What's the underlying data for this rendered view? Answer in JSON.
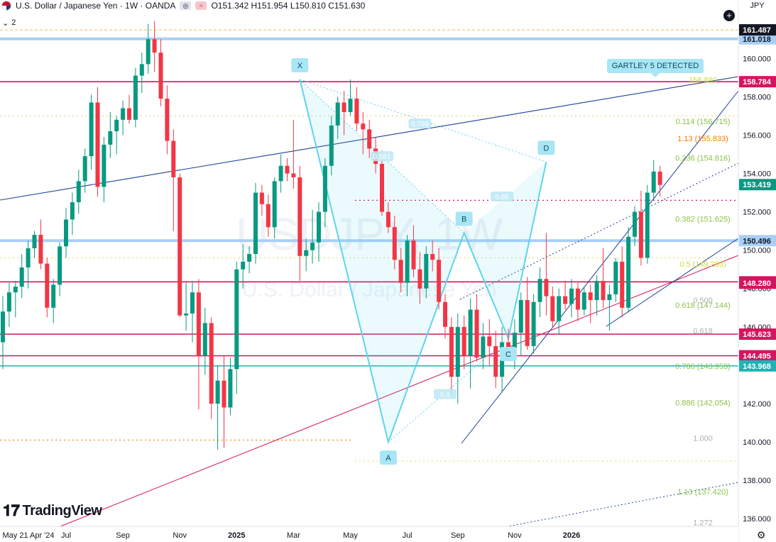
{
  "header": {
    "title": "U.S. Dollar / Japanese Yen · 1W · OANDA",
    "ohlc": "O151.342 H151.954 L150.810 C151.630"
  },
  "indicator_count": "2",
  "currency": "JPY",
  "logo_text": "TradingView",
  "watermark": {
    "symbol": "USDJPY, 1W",
    "name": "U.S. Dollar / Japanese Yen"
  },
  "pattern_label": "GARTLEY 5 DETECTED",
  "colors": {
    "up": "#089981",
    "down": "#f23645",
    "pink": "#d6145f",
    "blue": "#a9cff5",
    "teal": "#20b2b5",
    "navy": "#1c3f95",
    "pattern": "#5ed4ec",
    "orange": "#f57c00"
  },
  "chart_data": {
    "type": "candlestick",
    "timeframe": "1W",
    "x_axis": {
      "ticks": [
        {
          "label": "May 21 Apr '24",
          "week": 0
        },
        {
          "label": "Jul",
          "week": 10
        },
        {
          "label": "Sep",
          "week": 19
        },
        {
          "label": "Nov",
          "week": 28
        },
        {
          "label": "2025",
          "week": 37
        },
        {
          "label": "Mar",
          "week": 46
        },
        {
          "label": "May",
          "week": 55
        },
        {
          "label": "Jul",
          "week": 64
        },
        {
          "label": "Sep",
          "week": 72
        },
        {
          "label": "Nov",
          "week": 81
        },
        {
          "label": "2026",
          "week": 90
        }
      ]
    },
    "y_axis": {
      "min": 135.6,
      "max": 162.6,
      "ticks": [
        "136.000",
        "138.000",
        "140.000",
        "142.000",
        "144.000",
        "146.000",
        "148.000",
        "150.000",
        "152.000",
        "154.000",
        "156.000",
        "158.000",
        "160.000"
      ]
    },
    "candles": [
      {
        "o": 145.2,
        "h": 147.6,
        "l": 143.8,
        "c": 146.8
      },
      {
        "o": 146.8,
        "h": 148.3,
        "l": 146.0,
        "c": 147.8
      },
      {
        "o": 147.8,
        "h": 148.4,
        "l": 146.5,
        "c": 148.1
      },
      {
        "o": 148.1,
        "h": 149.8,
        "l": 147.5,
        "c": 149.1
      },
      {
        "o": 149.1,
        "h": 150.5,
        "l": 148.0,
        "c": 150.1
      },
      {
        "o": 150.1,
        "h": 151.0,
        "l": 149.6,
        "c": 150.8
      },
      {
        "o": 150.8,
        "h": 151.6,
        "l": 149.0,
        "c": 149.3
      },
      {
        "o": 149.3,
        "h": 149.6,
        "l": 146.5,
        "c": 147.0
      },
      {
        "o": 147.0,
        "h": 148.5,
        "l": 146.2,
        "c": 148.2
      },
      {
        "o": 148.2,
        "h": 150.4,
        "l": 147.6,
        "c": 150.2
      },
      {
        "o": 150.2,
        "h": 152.2,
        "l": 149.6,
        "c": 151.6
      },
      {
        "o": 151.6,
        "h": 153.0,
        "l": 150.8,
        "c": 152.5
      },
      {
        "o": 152.5,
        "h": 154.2,
        "l": 151.9,
        "c": 153.6
      },
      {
        "o": 153.6,
        "h": 155.3,
        "l": 153.0,
        "c": 154.9
      },
      {
        "o": 154.9,
        "h": 158.1,
        "l": 154.2,
        "c": 157.7
      },
      {
        "o": 157.7,
        "h": 158.5,
        "l": 152.8,
        "c": 153.3
      },
      {
        "o": 153.3,
        "h": 155.9,
        "l": 152.5,
        "c": 155.5
      },
      {
        "o": 155.5,
        "h": 157.2,
        "l": 154.8,
        "c": 156.2
      },
      {
        "o": 156.2,
        "h": 157.0,
        "l": 155.0,
        "c": 156.8
      },
      {
        "o": 156.8,
        "h": 157.8,
        "l": 156.0,
        "c": 157.4
      },
      {
        "o": 157.4,
        "h": 158.1,
        "l": 156.6,
        "c": 156.8
      },
      {
        "o": 156.8,
        "h": 159.5,
        "l": 156.4,
        "c": 159.1
      },
      {
        "o": 159.1,
        "h": 160.3,
        "l": 158.2,
        "c": 159.7
      },
      {
        "o": 159.7,
        "h": 161.8,
        "l": 159.2,
        "c": 161.0
      },
      {
        "o": 161.0,
        "h": 161.95,
        "l": 159.3,
        "c": 160.3
      },
      {
        "o": 160.3,
        "h": 161.0,
        "l": 157.5,
        "c": 157.9
      },
      {
        "o": 157.9,
        "h": 158.6,
        "l": 155.0,
        "c": 155.7
      },
      {
        "o": 155.7,
        "h": 156.3,
        "l": 151.0,
        "c": 153.8
      },
      {
        "o": 153.8,
        "h": 154.0,
        "l": 146.5,
        "c": 146.6
      },
      {
        "o": 146.6,
        "h": 148.3,
        "l": 145.8,
        "c": 146.7
      },
      {
        "o": 146.7,
        "h": 148.4,
        "l": 145.2,
        "c": 147.8
      },
      {
        "o": 147.8,
        "h": 148.5,
        "l": 141.7,
        "c": 144.5
      },
      {
        "o": 144.5,
        "h": 147.0,
        "l": 143.5,
        "c": 146.2
      },
      {
        "o": 146.2,
        "h": 146.5,
        "l": 141.2,
        "c": 142.0
      },
      {
        "o": 142.0,
        "h": 144.0,
        "l": 139.6,
        "c": 143.2
      },
      {
        "o": 143.2,
        "h": 144.5,
        "l": 139.7,
        "c": 141.8
      },
      {
        "o": 141.8,
        "h": 144.4,
        "l": 141.4,
        "c": 143.8
      },
      {
        "o": 143.8,
        "h": 149.4,
        "l": 142.5,
        "c": 149.0
      },
      {
        "o": 149.0,
        "h": 150.3,
        "l": 148.0,
        "c": 149.4
      },
      {
        "o": 149.4,
        "h": 150.2,
        "l": 148.8,
        "c": 149.8
      },
      {
        "o": 149.8,
        "h": 153.5,
        "l": 149.3,
        "c": 153.0
      },
      {
        "o": 153.0,
        "h": 153.4,
        "l": 151.8,
        "c": 152.4
      },
      {
        "o": 152.4,
        "h": 152.9,
        "l": 150.7,
        "c": 151.2
      },
      {
        "o": 151.2,
        "h": 153.8,
        "l": 150.6,
        "c": 153.6
      },
      {
        "o": 153.6,
        "h": 155.0,
        "l": 153.0,
        "c": 154.4
      },
      {
        "o": 154.4,
        "h": 154.8,
        "l": 153.6,
        "c": 154.0
      },
      {
        "o": 154.0,
        "h": 156.8,
        "l": 153.2,
        "c": 153.8
      },
      {
        "o": 153.8,
        "h": 154.4,
        "l": 148.4,
        "c": 149.7
      },
      {
        "o": 149.7,
        "h": 150.6,
        "l": 148.9,
        "c": 150.0
      },
      {
        "o": 150.0,
        "h": 152.1,
        "l": 149.3,
        "c": 150.4
      },
      {
        "o": 150.4,
        "h": 152.5,
        "l": 149.4,
        "c": 152.0
      },
      {
        "o": 152.0,
        "h": 154.8,
        "l": 151.2,
        "c": 154.4
      },
      {
        "o": 154.4,
        "h": 157.0,
        "l": 153.9,
        "c": 156.5
      },
      {
        "o": 156.5,
        "h": 158.0,
        "l": 155.8,
        "c": 157.7
      },
      {
        "o": 157.7,
        "h": 158.3,
        "l": 156.0,
        "c": 157.2
      },
      {
        "o": 157.2,
        "h": 158.9,
        "l": 157.0,
        "c": 157.9
      },
      {
        "o": 157.9,
        "h": 158.5,
        "l": 156.2,
        "c": 156.6
      },
      {
        "o": 156.6,
        "h": 157.2,
        "l": 155.0,
        "c": 156.3
      },
      {
        "o": 156.3,
        "h": 156.8,
        "l": 154.8,
        "c": 155.3
      },
      {
        "o": 155.3,
        "h": 155.9,
        "l": 154.0,
        "c": 154.5
      },
      {
        "o": 154.5,
        "h": 155.2,
        "l": 151.8,
        "c": 152.0
      },
      {
        "o": 152.0,
        "h": 152.5,
        "l": 150.9,
        "c": 151.2
      },
      {
        "o": 151.2,
        "h": 151.8,
        "l": 149.0,
        "c": 149.5
      },
      {
        "o": 149.5,
        "h": 150.1,
        "l": 147.8,
        "c": 148.3
      },
      {
        "o": 148.3,
        "h": 150.8,
        "l": 147.6,
        "c": 150.5
      },
      {
        "o": 150.5,
        "h": 151.3,
        "l": 148.6,
        "c": 149.0
      },
      {
        "o": 149.0,
        "h": 149.9,
        "l": 147.2,
        "c": 148.0
      },
      {
        "o": 148.0,
        "h": 150.2,
        "l": 147.5,
        "c": 149.8
      },
      {
        "o": 149.8,
        "h": 150.5,
        "l": 148.9,
        "c": 149.5
      },
      {
        "o": 149.5,
        "h": 150.1,
        "l": 146.9,
        "c": 147.3
      },
      {
        "o": 147.3,
        "h": 147.7,
        "l": 145.4,
        "c": 146.0
      },
      {
        "o": 146.0,
        "h": 146.5,
        "l": 142.4,
        "c": 143.4
      },
      {
        "o": 143.4,
        "h": 146.7,
        "l": 142.0,
        "c": 146.0
      },
      {
        "o": 146.0,
        "h": 146.6,
        "l": 143.8,
        "c": 144.5
      },
      {
        "o": 144.5,
        "h": 147.5,
        "l": 142.8,
        "c": 146.9
      },
      {
        "o": 146.9,
        "h": 147.7,
        "l": 144.2,
        "c": 144.4
      },
      {
        "o": 144.4,
        "h": 146.2,
        "l": 143.8,
        "c": 145.5
      },
      {
        "o": 145.5,
        "h": 146.4,
        "l": 144.0,
        "c": 145.0
      },
      {
        "o": 145.0,
        "h": 145.8,
        "l": 142.8,
        "c": 143.4
      },
      {
        "o": 143.4,
        "h": 146.0,
        "l": 142.6,
        "c": 145.2
      },
      {
        "o": 145.2,
        "h": 145.9,
        "l": 144.4,
        "c": 144.7
      },
      {
        "o": 144.7,
        "h": 146.4,
        "l": 143.8,
        "c": 145.7
      },
      {
        "o": 145.7,
        "h": 147.8,
        "l": 144.5,
        "c": 147.4
      },
      {
        "o": 147.4,
        "h": 148.6,
        "l": 144.8,
        "c": 145.0
      },
      {
        "o": 145.0,
        "h": 147.7,
        "l": 144.6,
        "c": 147.3
      },
      {
        "o": 147.3,
        "h": 149.1,
        "l": 146.5,
        "c": 148.5
      },
      {
        "o": 148.5,
        "h": 150.9,
        "l": 146.6,
        "c": 147.6
      },
      {
        "o": 147.6,
        "h": 148.1,
        "l": 146.0,
        "c": 146.3
      },
      {
        "o": 146.3,
        "h": 148.0,
        "l": 145.6,
        "c": 147.6
      },
      {
        "o": 147.6,
        "h": 148.4,
        "l": 146.9,
        "c": 147.2
      },
      {
        "o": 147.2,
        "h": 148.5,
        "l": 146.5,
        "c": 148.0
      },
      {
        "o": 148.0,
        "h": 148.3,
        "l": 146.3,
        "c": 146.9
      },
      {
        "o": 146.9,
        "h": 148.1,
        "l": 146.6,
        "c": 147.8
      },
      {
        "o": 147.8,
        "h": 148.2,
        "l": 146.2,
        "c": 147.4
      },
      {
        "o": 147.4,
        "h": 148.7,
        "l": 146.6,
        "c": 148.4
      },
      {
        "o": 148.4,
        "h": 150.1,
        "l": 147.0,
        "c": 147.4
      },
      {
        "o": 147.4,
        "h": 148.2,
        "l": 145.8,
        "c": 147.7
      },
      {
        "o": 147.7,
        "h": 149.6,
        "l": 147.3,
        "c": 149.4
      },
      {
        "o": 149.4,
        "h": 150.2,
        "l": 146.5,
        "c": 147.0
      },
      {
        "o": 147.0,
        "h": 151.2,
        "l": 146.8,
        "c": 150.7
      },
      {
        "o": 150.7,
        "h": 152.3,
        "l": 150.2,
        "c": 152.0
      },
      {
        "o": 152.0,
        "h": 153.1,
        "l": 149.2,
        "c": 149.6
      },
      {
        "o": 149.6,
        "h": 153.4,
        "l": 149.3,
        "c": 153.0
      },
      {
        "o": 153.0,
        "h": 154.7,
        "l": 152.6,
        "c": 154.1
      },
      {
        "o": 154.1,
        "h": 154.4,
        "l": 152.8,
        "c": 153.4
      }
    ],
    "levels": [
      {
        "price": 161.018,
        "label": "161.018",
        "color": "#a9cff5",
        "badge_text": "#131722",
        "style": "band"
      },
      {
        "price": 161.487,
        "label": "161.487",
        "color": "#131722",
        "badge_text": "#ffffff",
        "style": "dash"
      },
      {
        "price": 158.784,
        "label": "158.784",
        "color": "#d6145f",
        "badge_text": "#ffffff",
        "style": "solid"
      },
      {
        "price": 153.419,
        "label": "153.419",
        "color": "#089981",
        "badge_text": "#ffffff",
        "style": "none"
      },
      {
        "price": 150.496,
        "label": "150.496",
        "color": "#a9cff5",
        "badge_text": "#131722",
        "style": "band"
      },
      {
        "price": 148.348,
        "label": "148.348",
        "color": "#d6145f",
        "badge_text": "#ffffff",
        "style": "solid"
      },
      {
        "price": 148.282,
        "label": "148.282",
        "color": "#1c3f95",
        "badge_text": "#ffffff",
        "style": "none"
      },
      {
        "price": 148.28,
        "label": "148.280",
        "color": "#d6145f",
        "badge_text": "#ffffff",
        "style": "none"
      },
      {
        "price": 145.623,
        "label": "145.623",
        "color": "#d6145f",
        "badge_text": "#ffffff",
        "style": "solid"
      },
      {
        "price": 144.495,
        "label": "144.495",
        "color": "#d6145f",
        "badge_text": "#ffffff",
        "style": "solid"
      },
      {
        "price": 143.968,
        "label": "143.968",
        "color": "#20b2b5",
        "badge_text": "#ffffff",
        "style": "solid"
      }
    ],
    "fib_labels": [
      {
        "text": "0.114 (156.715)",
        "price": 156.715,
        "color": "#8bc34a"
      },
      {
        "text": "1.13 (155.833)",
        "price": 155.833,
        "color": "#f57c00"
      },
      {
        "text": "0.236 (154.816)",
        "price": 154.816,
        "color": "#8bc34a"
      },
      {
        "text": "0.382 (151.625)",
        "price": 151.625,
        "color": "#8bc34a"
      },
      {
        "text": "0.5 (149.293)",
        "price": 149.293,
        "color": "#cddc39"
      },
      {
        "text": "0.500",
        "price": 147.4,
        "color": "#b0b0b0"
      },
      {
        "text": "0.618 (147.144)",
        "price": 147.144,
        "color": "#8bc34a"
      },
      {
        "text": "0.618",
        "price": 145.8,
        "color": "#b0b0b0"
      },
      {
        "text": "0.786 (143.953)",
        "price": 143.953,
        "color": "#8bc34a"
      },
      {
        "text": "0.886 (142.054)",
        "price": 142.054,
        "color": "#8bc34a"
      },
      {
        "text": "1.000",
        "price": 140.2,
        "color": "#b0b0b0"
      },
      {
        "text": "1.13 (137.420)",
        "price": 137.42,
        "color": "#8bc34a"
      },
      {
        "text": "1.272",
        "price": 135.8,
        "color": "#b0b0b0"
      },
      {
        "text": "158.880",
        "price": 158.88,
        "color": "#cddc39"
      }
    ],
    "pattern_points": [
      {
        "label": "X",
        "week": 47,
        "price": 158.9
      },
      {
        "label": "A",
        "week": 61,
        "price": 140.0
      },
      {
        "label": "B",
        "week": 73,
        "price": 150.9
      },
      {
        "label": "C",
        "week": 80,
        "price": 145.4
      },
      {
        "label": "D",
        "week": 86,
        "price": 154.6
      }
    ],
    "ratio_labels": [
      {
        "text": "0.769",
        "week": 66,
        "price": 156.6
      },
      {
        "text": "0.581",
        "week": 60,
        "price": 154.9
      },
      {
        "text": "0.86",
        "week": 79,
        "price": 152.8
      },
      {
        "text": "0.5",
        "week": 70,
        "price": 142.5
      }
    ]
  }
}
